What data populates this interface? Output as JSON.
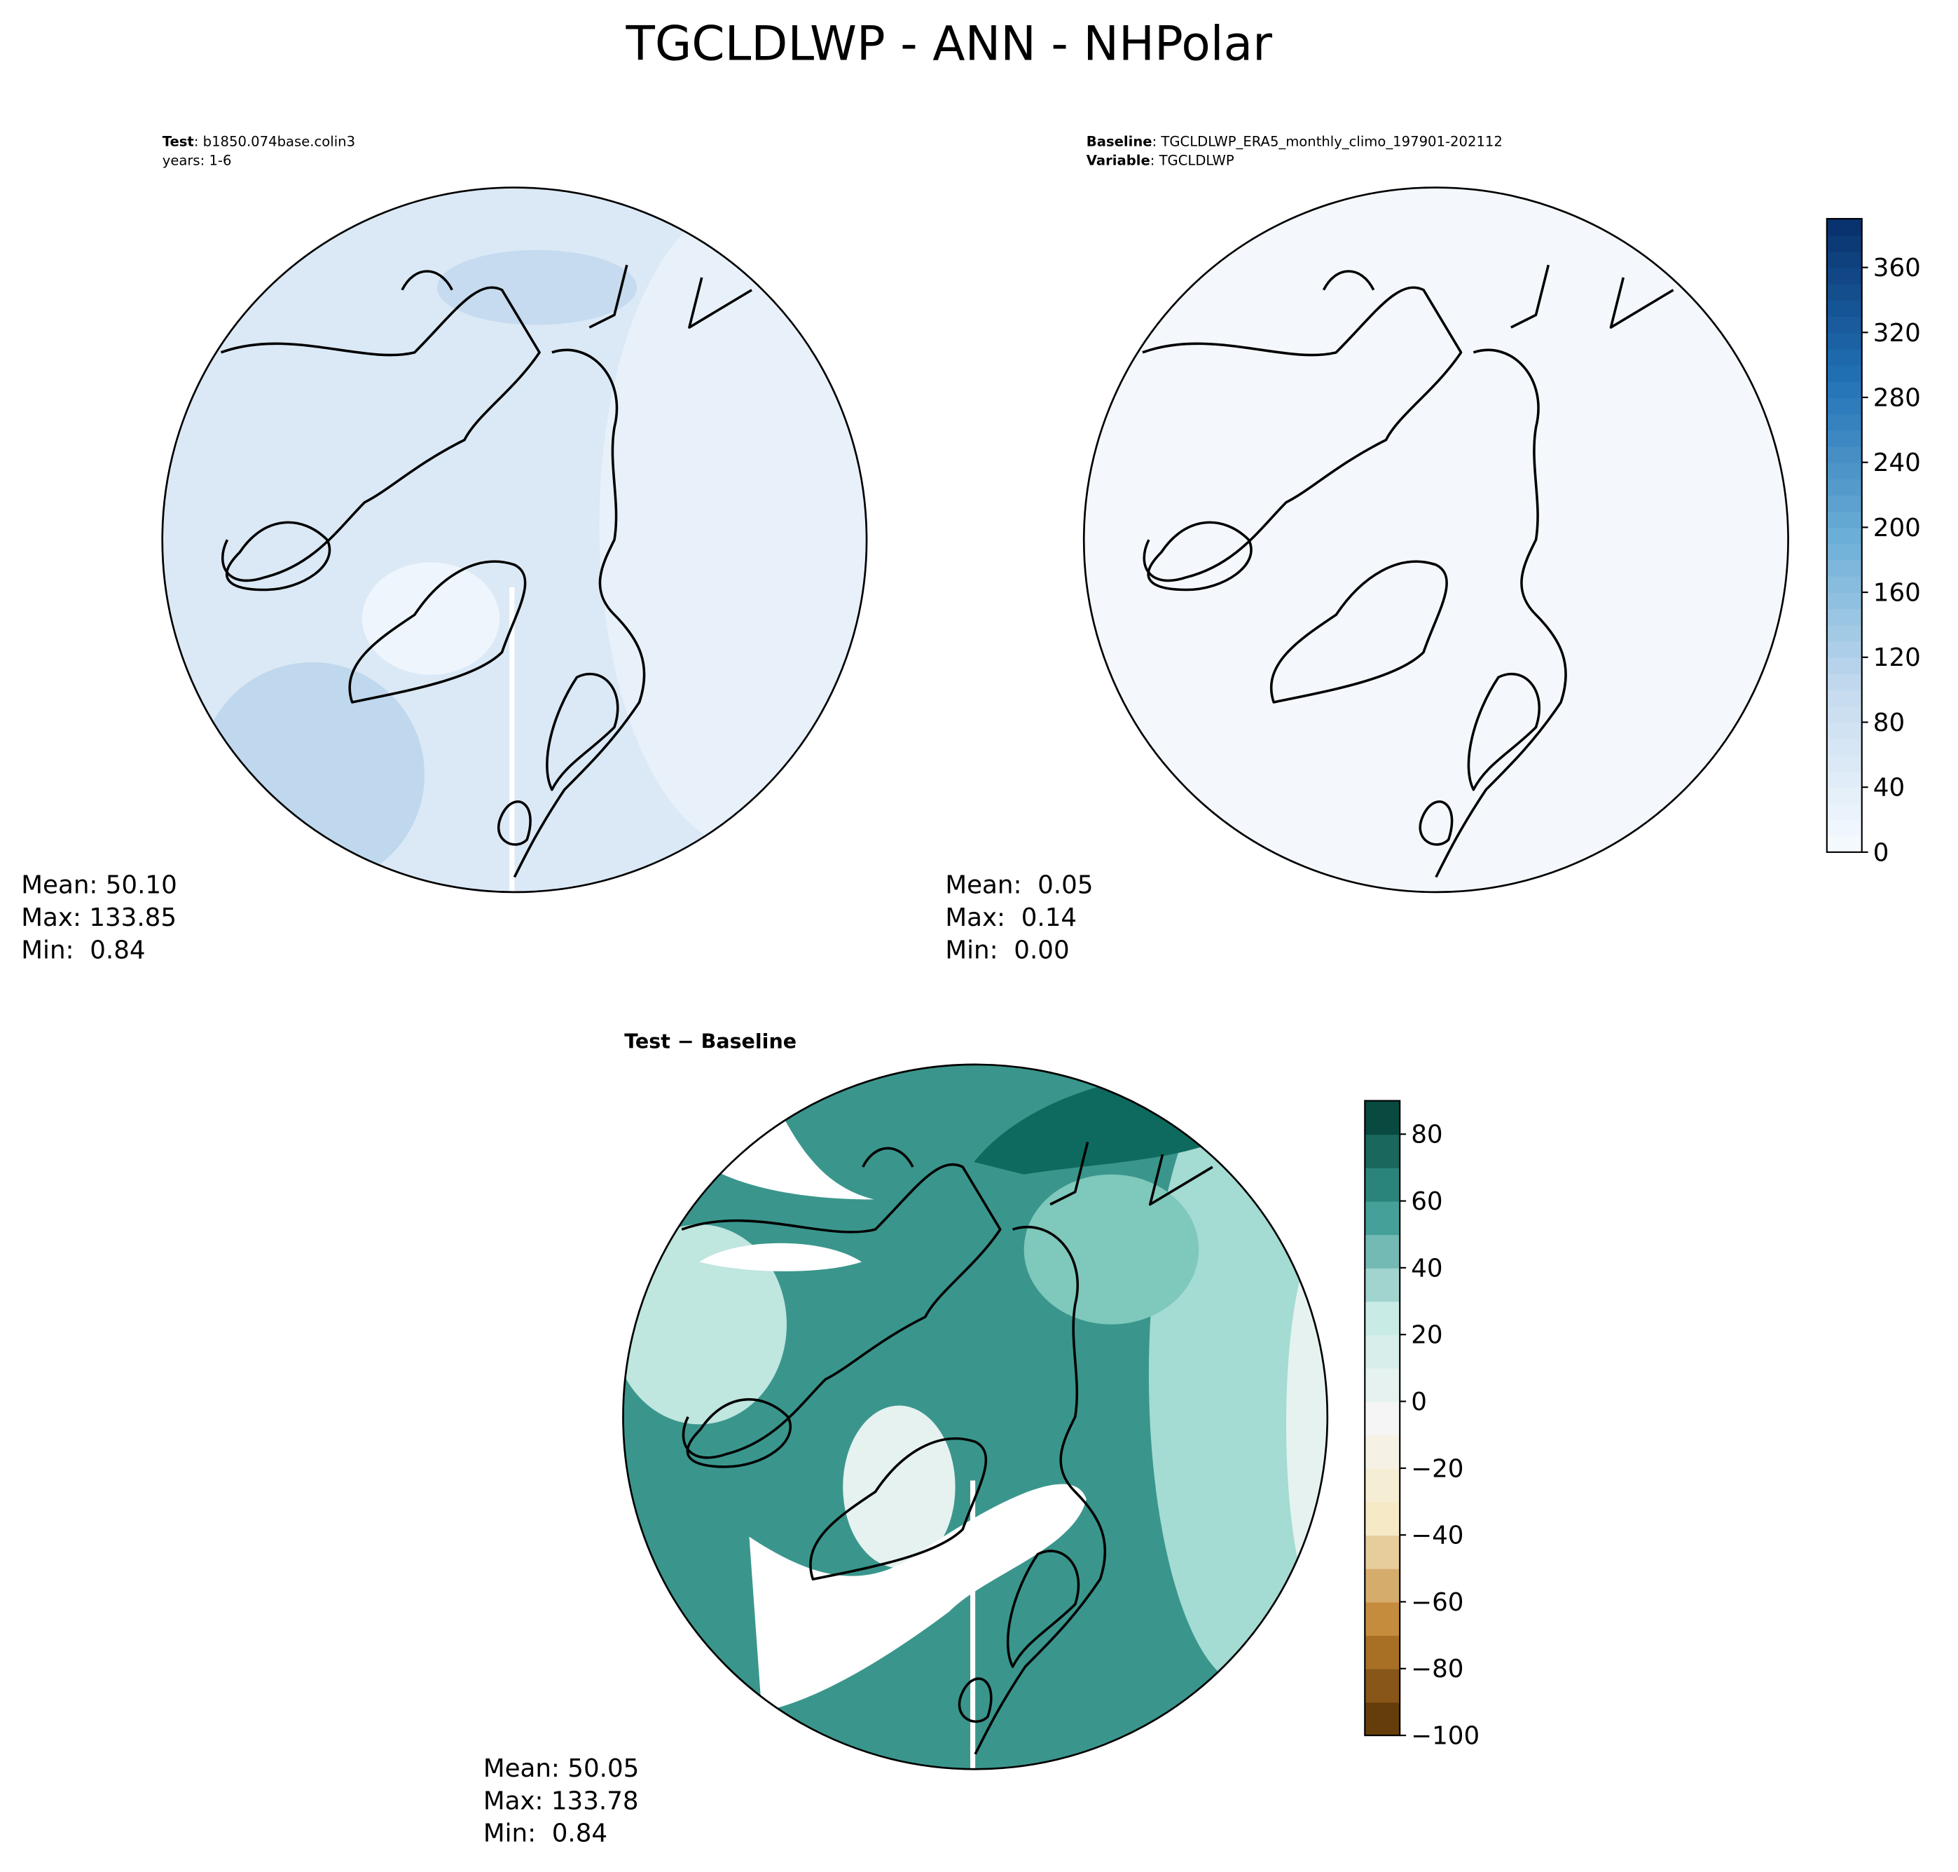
{
  "title": "TGCLDLWP - ANN - NHPolar",
  "panels": [
    {
      "key": "Test",
      "value": ": b1850.074base.colin3",
      "line2": "years: 1-6",
      "stats": [
        "Mean: 50.10",
        "Max: 133.85",
        "Min:  0.84"
      ]
    },
    {
      "key": "Baseline",
      "value": ": TGCLDLWP_ERA5_monthly_climo_197901-202112",
      "key2": "Variable",
      "value2": ": TGCLDLWP",
      "stats": [
        "Mean:  0.05",
        "Max:  0.14",
        "Min:  0.00"
      ]
    },
    {
      "key": "Test − Baseline",
      "stats": [
        "Mean: 50.05",
        "Max: 133.78",
        "Min:  0.84"
      ]
    }
  ],
  "colorbars": [
    {
      "lim": [
        0,
        390
      ],
      "ticks": [
        0,
        40,
        80,
        120,
        160,
        200,
        240,
        280,
        320,
        360
      ],
      "colors": [
        "#f7fbff",
        "#c6dbef",
        "#6baed6",
        "#2171b5",
        "#08306b"
      ]
    },
    {
      "lim": [
        -100,
        90
      ],
      "ticks": [
        {
          "value": -100,
          "label": "−100"
        },
        {
          "value": -80,
          "label": "−80"
        },
        {
          "value": -60,
          "label": "−60"
        },
        {
          "value": -40,
          "label": "−40"
        },
        {
          "value": -20,
          "label": "−20"
        },
        0,
        20,
        40,
        60,
        80
      ],
      "colors": [
        "#543005",
        "#bf812d",
        "#f6e8c3",
        "#f5f5f5",
        "#c7eae5",
        "#35978f",
        "#003c30"
      ]
    }
  ]
}
